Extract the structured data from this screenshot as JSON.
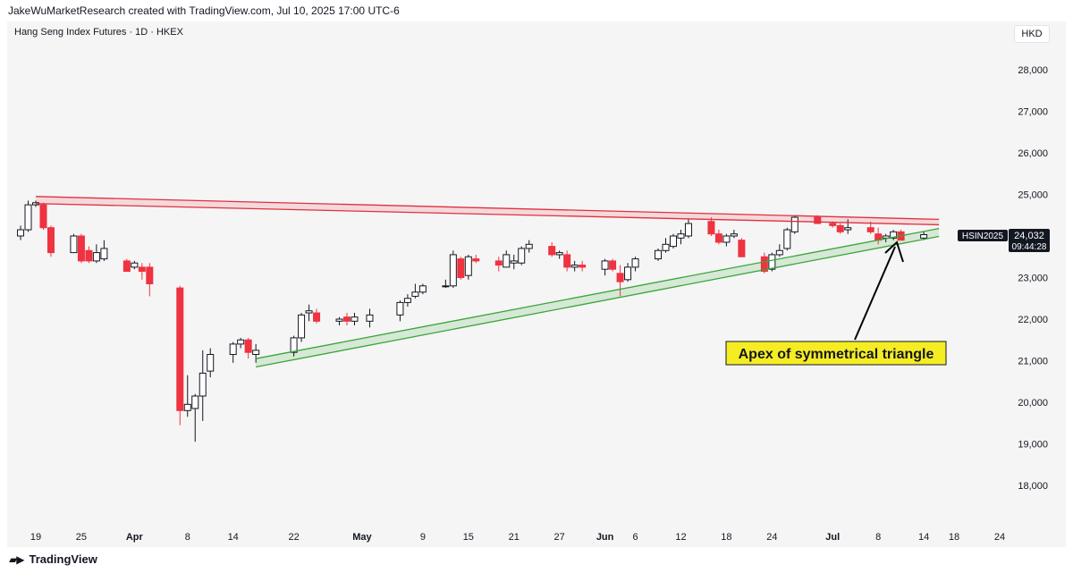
{
  "header": {
    "credit": "JakeWuMarketResearch created with TradingView.com, Jul 10, 2025 17:00 UTC-6",
    "title": "Hang Seng Index Futures · 1D · HKEX",
    "currency": "HKD"
  },
  "footer": {
    "brand": "TradingView",
    "logo_icon": "tradingview-logo-icon"
  },
  "price_tag": {
    "symbol": "HSIN2025",
    "price": "24,032",
    "countdown": "09:44:28"
  },
  "annotation": {
    "text": "Apex of symmetrical triangle"
  },
  "colors": {
    "up": "#131722",
    "down": "#ef3340",
    "resistance": "#e0303f",
    "support": "#3aa53a",
    "annotation_bg": "#f5ec24"
  },
  "chart_data": {
    "type": "candlestick",
    "title": "Hang Seng Index Futures · 1D · HKEX",
    "ylim": [
      17200,
      28700
    ],
    "yticks": [
      18000,
      19000,
      20000,
      21000,
      22000,
      23000,
      24000,
      25000,
      26000,
      27000,
      28000
    ],
    "ytick_labels": [
      "18,000",
      "19,000",
      "20,000",
      "21,000",
      "22,000",
      "23,000",
      "24,000",
      "25,000",
      "26,000",
      "27,000",
      "28,000"
    ],
    "xticks": [
      {
        "x": "2025-03-19",
        "label": "19"
      },
      {
        "x": "2025-03-25",
        "label": "25"
      },
      {
        "x": "2025-04-01",
        "label": "Apr"
      },
      {
        "x": "2025-04-08",
        "label": "8"
      },
      {
        "x": "2025-04-14",
        "label": "14"
      },
      {
        "x": "2025-04-22",
        "label": "22"
      },
      {
        "x": "2025-05-01",
        "label": "May"
      },
      {
        "x": "2025-05-09",
        "label": "9"
      },
      {
        "x": "2025-05-15",
        "label": "15"
      },
      {
        "x": "2025-05-21",
        "label": "21"
      },
      {
        "x": "2025-05-27",
        "label": "27"
      },
      {
        "x": "2025-06-02",
        "label": "Jun"
      },
      {
        "x": "2025-06-06",
        "label": "6"
      },
      {
        "x": "2025-06-12",
        "label": "12"
      },
      {
        "x": "2025-06-18",
        "label": "18"
      },
      {
        "x": "2025-06-24",
        "label": "24"
      },
      {
        "x": "2025-07-02",
        "label": "Jul"
      },
      {
        "x": "2025-07-08",
        "label": "8"
      },
      {
        "x": "2025-07-14",
        "label": "14"
      },
      {
        "x": "2025-07-18",
        "label": "18"
      },
      {
        "x": "2025-07-24",
        "label": "24"
      }
    ],
    "candles": [
      {
        "d": "2025-03-17",
        "o": 24000,
        "h": 24250,
        "l": 23900,
        "c": 24150
      },
      {
        "d": "2025-03-18",
        "o": 24150,
        "h": 24850,
        "l": 24100,
        "c": 24750
      },
      {
        "d": "2025-03-19",
        "o": 24750,
        "h": 24850,
        "l": 24700,
        "c": 24800
      },
      {
        "d": "2025-03-20",
        "o": 24750,
        "h": 24800,
        "l": 24150,
        "c": 24200
      },
      {
        "d": "2025-03-21",
        "o": 24200,
        "h": 24250,
        "l": 23500,
        "c": 23600
      },
      {
        "d": "2025-03-24",
        "o": 23600,
        "h": 24050,
        "l": 23600,
        "c": 24000
      },
      {
        "d": "2025-03-25",
        "o": 24000,
        "h": 24050,
        "l": 23350,
        "c": 23400
      },
      {
        "d": "2025-03-26",
        "o": 23650,
        "h": 23750,
        "l": 23350,
        "c": 23400
      },
      {
        "d": "2025-03-27",
        "o": 23400,
        "h": 23800,
        "l": 23350,
        "c": 23600
      },
      {
        "d": "2025-03-28",
        "o": 23450,
        "h": 23900,
        "l": 23400,
        "c": 23700
      },
      {
        "d": "2025-03-31",
        "o": 23400,
        "h": 23450,
        "l": 23150,
        "c": 23150
      },
      {
        "d": "2025-04-01",
        "o": 23250,
        "h": 23400,
        "l": 23200,
        "c": 23350
      },
      {
        "d": "2025-04-02",
        "o": 23250,
        "h": 23350,
        "l": 22950,
        "c": 23150
      },
      {
        "d": "2025-04-03",
        "o": 23250,
        "h": 23350,
        "l": 22550,
        "c": 22850
      },
      {
        "d": "2025-04-07",
        "o": 22750,
        "h": 22800,
        "l": 19450,
        "c": 19800
      },
      {
        "d": "2025-04-08",
        "o": 19800,
        "h": 20650,
        "l": 19650,
        "c": 19950
      },
      {
        "d": "2025-04-09",
        "o": 19850,
        "h": 20200,
        "l": 19050,
        "c": 20150
      },
      {
        "d": "2025-04-10",
        "o": 20150,
        "h": 21250,
        "l": 19550,
        "c": 20700
      },
      {
        "d": "2025-04-11",
        "o": 20750,
        "h": 21300,
        "l": 20600,
        "c": 21150
      },
      {
        "d": "2025-04-14",
        "o": 21150,
        "h": 21450,
        "l": 20950,
        "c": 21400
      },
      {
        "d": "2025-04-15",
        "o": 21400,
        "h": 21550,
        "l": 21300,
        "c": 21500
      },
      {
        "d": "2025-04-16",
        "o": 21500,
        "h": 21550,
        "l": 21050,
        "c": 21200
      },
      {
        "d": "2025-04-17",
        "o": 21150,
        "h": 21400,
        "l": 20950,
        "c": 21250
      },
      {
        "d": "2025-04-22",
        "o": 21200,
        "h": 21600,
        "l": 21100,
        "c": 21550
      },
      {
        "d": "2025-04-23",
        "o": 21550,
        "h": 22150,
        "l": 21450,
        "c": 22100
      },
      {
        "d": "2025-04-24",
        "o": 22150,
        "h": 22350,
        "l": 21950,
        "c": 22200
      },
      {
        "d": "2025-04-25",
        "o": 22150,
        "h": 22250,
        "l": 21900,
        "c": 21950
      },
      {
        "d": "2025-04-28",
        "o": 21950,
        "h": 22050,
        "l": 21850,
        "c": 22000
      },
      {
        "d": "2025-04-29",
        "o": 22050,
        "h": 22150,
        "l": 21850,
        "c": 21950
      },
      {
        "d": "2025-04-30",
        "o": 21950,
        "h": 22150,
        "l": 21850,
        "c": 22050
      },
      {
        "d": "2025-05-02",
        "o": 21950,
        "h": 22250,
        "l": 21800,
        "c": 22100
      },
      {
        "d": "2025-05-06",
        "o": 22100,
        "h": 22450,
        "l": 21950,
        "c": 22400
      },
      {
        "d": "2025-05-07",
        "o": 22400,
        "h": 22600,
        "l": 22300,
        "c": 22500
      },
      {
        "d": "2025-05-08",
        "o": 22550,
        "h": 22850,
        "l": 22500,
        "c": 22650
      },
      {
        "d": "2025-05-09",
        "o": 22650,
        "h": 22850,
        "l": 22600,
        "c": 22800
      },
      {
        "d": "2025-05-12",
        "o": 22800,
        "h": 22950,
        "l": 22750,
        "c": 22800
      },
      {
        "d": "2025-05-13",
        "o": 22800,
        "h": 23650,
        "l": 22750,
        "c": 23550
      },
      {
        "d": "2025-05-14",
        "o": 23450,
        "h": 23500,
        "l": 22950,
        "c": 23000
      },
      {
        "d": "2025-05-15",
        "o": 23050,
        "h": 23550,
        "l": 22950,
        "c": 23500
      },
      {
        "d": "2025-05-16",
        "o": 23450,
        "h": 23550,
        "l": 23350,
        "c": 23400
      },
      {
        "d": "2025-05-19",
        "o": 23400,
        "h": 23500,
        "l": 23150,
        "c": 23300
      },
      {
        "d": "2025-05-20",
        "o": 23250,
        "h": 23650,
        "l": 23250,
        "c": 23550
      },
      {
        "d": "2025-05-21",
        "o": 23350,
        "h": 23550,
        "l": 23200,
        "c": 23400
      },
      {
        "d": "2025-05-22",
        "o": 23350,
        "h": 23750,
        "l": 23300,
        "c": 23700
      },
      {
        "d": "2025-05-23",
        "o": 23700,
        "h": 23900,
        "l": 23600,
        "c": 23800
      },
      {
        "d": "2025-05-26",
        "o": 23750,
        "h": 23850,
        "l": 23500,
        "c": 23550
      },
      {
        "d": "2025-05-27",
        "o": 23550,
        "h": 23650,
        "l": 23450,
        "c": 23600
      },
      {
        "d": "2025-05-28",
        "o": 23550,
        "h": 23650,
        "l": 23150,
        "c": 23250
      },
      {
        "d": "2025-05-29",
        "o": 23250,
        "h": 23400,
        "l": 23150,
        "c": 23300
      },
      {
        "d": "2025-05-30",
        "o": 23300,
        "h": 23400,
        "l": 23150,
        "c": 23250
      },
      {
        "d": "2025-06-02",
        "o": 23200,
        "h": 23450,
        "l": 23050,
        "c": 23400
      },
      {
        "d": "2025-06-03",
        "o": 23400,
        "h": 23450,
        "l": 23150,
        "c": 23200
      },
      {
        "d": "2025-06-04",
        "o": 23100,
        "h": 23300,
        "l": 22550,
        "c": 22900
      },
      {
        "d": "2025-06-05",
        "o": 22950,
        "h": 23350,
        "l": 22900,
        "c": 23250
      },
      {
        "d": "2025-06-06",
        "o": 23250,
        "h": 23500,
        "l": 23150,
        "c": 23450
      },
      {
        "d": "2025-06-09",
        "o": 23450,
        "h": 23700,
        "l": 23400,
        "c": 23650
      },
      {
        "d": "2025-06-10",
        "o": 23650,
        "h": 23950,
        "l": 23600,
        "c": 23800
      },
      {
        "d": "2025-06-11",
        "o": 23750,
        "h": 24050,
        "l": 23700,
        "c": 24000
      },
      {
        "d": "2025-06-12",
        "o": 23950,
        "h": 24150,
        "l": 23800,
        "c": 24050
      },
      {
        "d": "2025-06-13",
        "o": 24000,
        "h": 24400,
        "l": 23950,
        "c": 24300
      },
      {
        "d": "2025-06-16",
        "o": 24350,
        "h": 24450,
        "l": 24000,
        "c": 24050
      },
      {
        "d": "2025-06-17",
        "o": 24050,
        "h": 24150,
        "l": 23800,
        "c": 23850
      },
      {
        "d": "2025-06-18",
        "o": 23850,
        "h": 24050,
        "l": 23750,
        "c": 24000
      },
      {
        "d": "2025-06-19",
        "o": 24000,
        "h": 24150,
        "l": 23950,
        "c": 24050
      },
      {
        "d": "2025-06-20",
        "o": 23900,
        "h": 23950,
        "l": 23500,
        "c": 23500
      },
      {
        "d": "2025-06-23",
        "o": 23500,
        "h": 23600,
        "l": 23100,
        "c": 23150
      },
      {
        "d": "2025-06-24",
        "o": 23200,
        "h": 23600,
        "l": 23150,
        "c": 23550
      },
      {
        "d": "2025-06-25",
        "o": 23550,
        "h": 23800,
        "l": 23500,
        "c": 23650
      },
      {
        "d": "2025-06-26",
        "o": 23700,
        "h": 24200,
        "l": 23650,
        "c": 24150
      },
      {
        "d": "2025-06-27",
        "o": 24100,
        "h": 24500,
        "l": 24050,
        "c": 24450
      },
      {
        "d": "2025-06-30",
        "o": 24450,
        "h": 24500,
        "l": 24300,
        "c": 24300
      },
      {
        "d": "2025-07-02",
        "o": 24300,
        "h": 24350,
        "l": 24200,
        "c": 24250
      },
      {
        "d": "2025-07-03",
        "o": 24250,
        "h": 24300,
        "l": 24050,
        "c": 24100
      },
      {
        "d": "2025-07-04",
        "o": 24150,
        "h": 24400,
        "l": 24050,
        "c": 24200
      },
      {
        "d": "2025-07-07",
        "o": 24200,
        "h": 24350,
        "l": 24050,
        "c": 24100
      },
      {
        "d": "2025-07-08",
        "o": 24050,
        "h": 24200,
        "l": 23800,
        "c": 23900
      },
      {
        "d": "2025-07-09",
        "o": 23950,
        "h": 24050,
        "l": 23850,
        "c": 24000
      },
      {
        "d": "2025-07-10",
        "o": 23950,
        "h": 24150,
        "l": 23900,
        "c": 24100
      },
      {
        "d": "2025-07-11",
        "o": 24100,
        "h": 24150,
        "l": 23900,
        "c": 23900
      },
      {
        "d": "2025-07-14",
        "o": 23950,
        "h": 24100,
        "l": 23900,
        "c": 24032
      }
    ],
    "trendlines": [
      {
        "name": "resistance-upper",
        "start": {
          "d": "2025-03-19",
          "y": 24950
        },
        "end": {
          "d": "2025-07-16",
          "y": 24400
        }
      },
      {
        "name": "resistance-lower",
        "start": {
          "d": "2025-03-19",
          "y": 24780
        },
        "end": {
          "d": "2025-07-16",
          "y": 24270
        }
      },
      {
        "name": "support-upper",
        "start": {
          "d": "2025-04-17",
          "y": 21050
        },
        "end": {
          "d": "2025-07-16",
          "y": 24180
        }
      },
      {
        "name": "support-lower",
        "start": {
          "d": "2025-04-17",
          "y": 20850
        },
        "end": {
          "d": "2025-07-16",
          "y": 23990
        }
      }
    ],
    "annotation": {
      "text": "Apex of symmetrical triangle"
    }
  }
}
